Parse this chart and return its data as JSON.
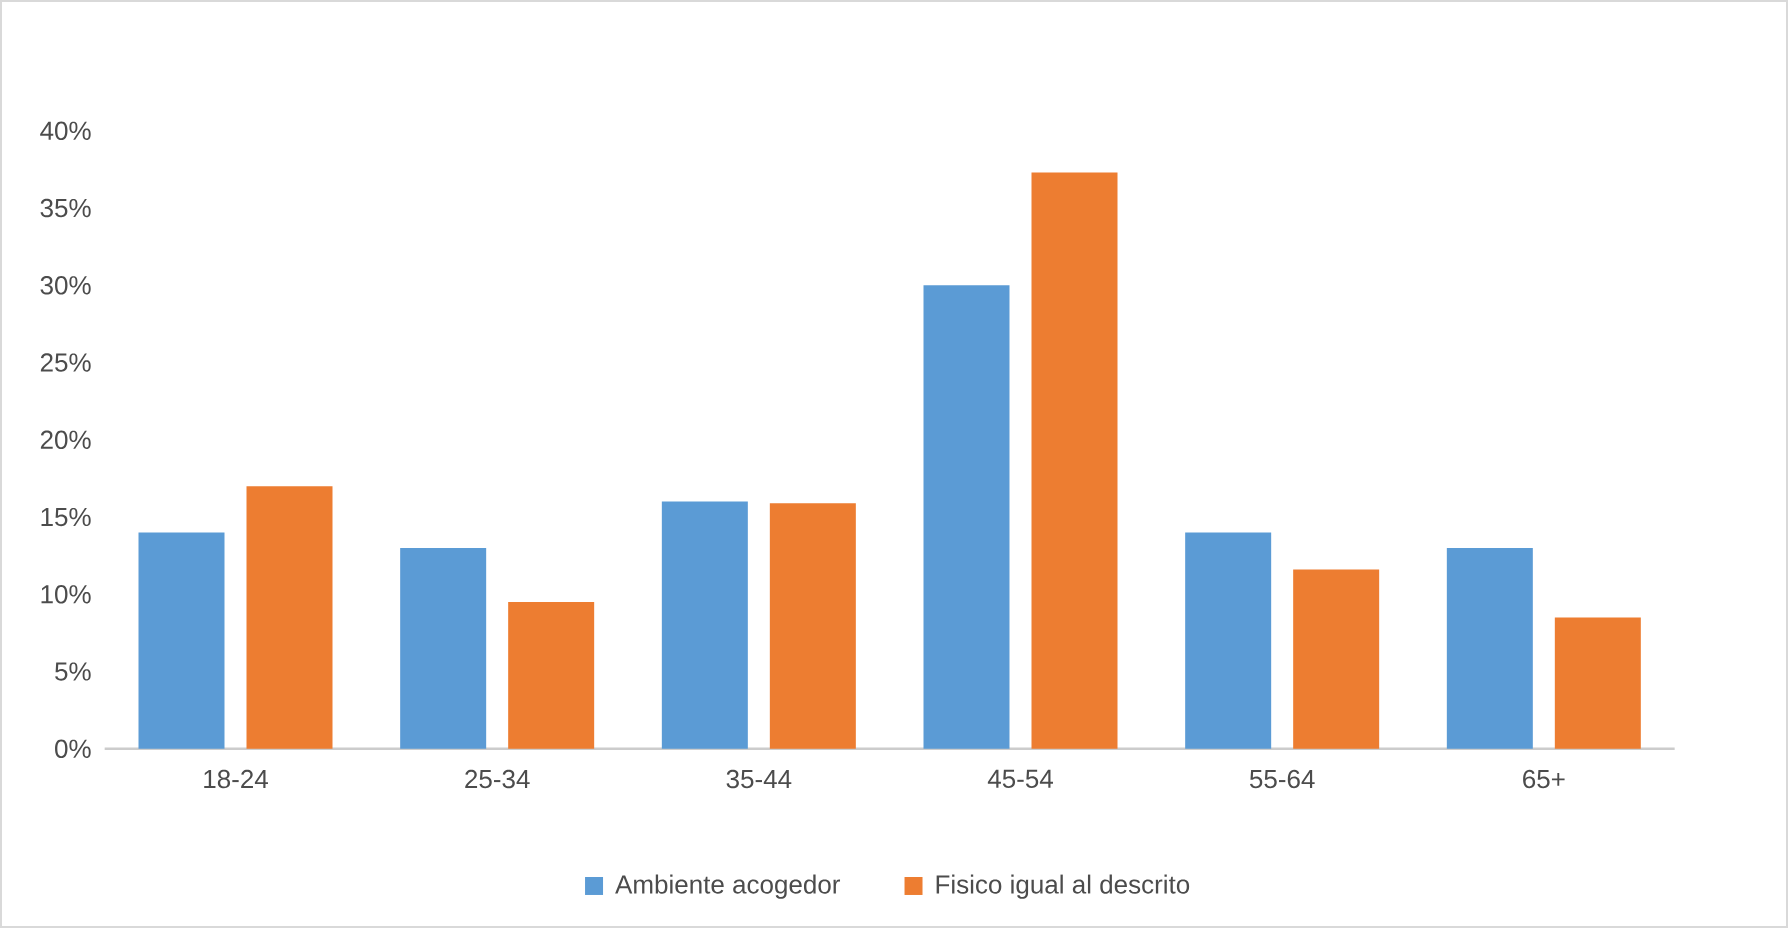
{
  "chart_data": {
    "type": "bar",
    "categories": [
      "18-24",
      "25-34",
      "35-44",
      "45-54",
      "55-64",
      "65+"
    ],
    "series": [
      {
        "name": "Ambiente acogedor",
        "color": "#5b9bd5",
        "values": [
          14,
          13,
          16,
          30,
          14,
          13
        ]
      },
      {
        "name": "Fisico igual al descrito",
        "color": "#ed7d31",
        "values": [
          17,
          9.5,
          15.9,
          37.3,
          11.6,
          8.5
        ]
      }
    ],
    "ylim": [
      0,
      40
    ],
    "yticks": [
      {
        "value": 0,
        "label": "0%"
      },
      {
        "value": 5,
        "label": "5%"
      },
      {
        "value": 10,
        "label": "10%"
      },
      {
        "value": 15,
        "label": "15%"
      },
      {
        "value": 20,
        "label": "20%"
      },
      {
        "value": 25,
        "label": "25%"
      },
      {
        "value": 30,
        "label": "30%"
      },
      {
        "value": 35,
        "label": "35%"
      },
      {
        "value": 40,
        "label": "40%"
      }
    ],
    "grid": false,
    "legend": "bottom"
  }
}
